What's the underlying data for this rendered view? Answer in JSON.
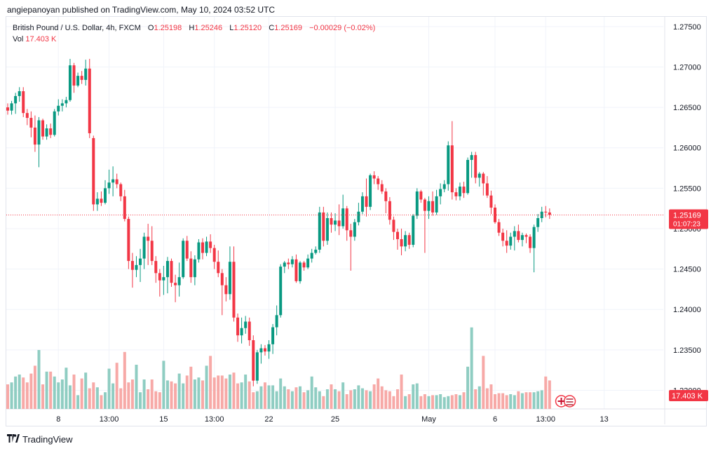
{
  "publish_line": "angiepanoyan published on TradingView.com, May 10, 2024 03:52 UTC",
  "footer_brand": "TradingView",
  "legend": {
    "symbol": "British Pound / U.S. Dollar, 4h, FXCM",
    "o_label": "O",
    "o_value": "1.25198",
    "h_label": "H",
    "h_value": "1.25246",
    "l_label": "L",
    "l_value": "1.25120",
    "c_label": "C",
    "c_value": "1.25169",
    "change": "−0.00029 (−0.02%)",
    "vol_label": "Vol",
    "vol_value": "17.403 K"
  },
  "colors": {
    "up": "#089981",
    "down": "#f23645",
    "up_vol": "#8fcdc2",
    "down_vol": "#f7a9a7",
    "grid": "#f0f3fa",
    "axis_text": "#131722"
  },
  "chart_data": {
    "type": "candlestick",
    "symbol": "GBPUSD",
    "timeframe": "4h",
    "y_ticks": [
      "1.27500",
      "1.27000",
      "1.26500",
      "1.26000",
      "1.25500",
      "1.25000",
      "1.24500",
      "1.24000",
      "1.23500",
      "1.23000"
    ],
    "ylim": [
      1.2277,
      1.2762
    ],
    "x_ticks": [
      {
        "label": "8",
        "bar": 13
      },
      {
        "label": "13:00",
        "bar": 26
      },
      {
        "label": "15",
        "bar": 40
      },
      {
        "label": "13:00",
        "bar": 53
      },
      {
        "label": "22",
        "bar": 67
      },
      {
        "label": "25",
        "bar": 84
      },
      {
        "label": "May",
        "bar": 108
      },
      {
        "label": "6",
        "bar": 125
      },
      {
        "label": "13:00",
        "bar": 138
      },
      {
        "label": "13",
        "bar": 153
      }
    ],
    "last_price": "1.25169",
    "countdown": "01:07:23",
    "volume_label": "17.403 K",
    "candles": [
      {
        "o": 1.265,
        "h": 1.2655,
        "l": 1.2641,
        "c": 1.2646
      },
      {
        "o": 1.2646,
        "h": 1.2658,
        "l": 1.2641,
        "c": 1.2655
      },
      {
        "o": 1.2655,
        "h": 1.2668,
        "l": 1.2642,
        "c": 1.2664
      },
      {
        "o": 1.2664,
        "h": 1.2675,
        "l": 1.2657,
        "c": 1.267
      },
      {
        "o": 1.267,
        "h": 1.2675,
        "l": 1.2638,
        "c": 1.2643
      },
      {
        "o": 1.2643,
        "h": 1.2648,
        "l": 1.2628,
        "c": 1.2637
      },
      {
        "o": 1.2637,
        "h": 1.2645,
        "l": 1.2613,
        "c": 1.2625
      },
      {
        "o": 1.2625,
        "h": 1.264,
        "l": 1.2595,
        "c": 1.2604
      },
      {
        "o": 1.2604,
        "h": 1.2638,
        "l": 1.2576,
        "c": 1.2634
      },
      {
        "o": 1.2634,
        "h": 1.2636,
        "l": 1.261,
        "c": 1.2614
      },
      {
        "o": 1.2614,
        "h": 1.2629,
        "l": 1.261,
        "c": 1.2624
      },
      {
        "o": 1.2624,
        "h": 1.263,
        "l": 1.2612,
        "c": 1.2616
      },
      {
        "o": 1.2616,
        "h": 1.2648,
        "l": 1.2614,
        "c": 1.2645
      },
      {
        "o": 1.2645,
        "h": 1.266,
        "l": 1.264,
        "c": 1.2652
      },
      {
        "o": 1.2652,
        "h": 1.266,
        "l": 1.2645,
        "c": 1.2655
      },
      {
        "o": 1.2655,
        "h": 1.2663,
        "l": 1.265,
        "c": 1.2659
      },
      {
        "o": 1.2659,
        "h": 1.271,
        "l": 1.2657,
        "c": 1.2702
      },
      {
        "o": 1.2702,
        "h": 1.2705,
        "l": 1.2668,
        "c": 1.2677
      },
      {
        "o": 1.2677,
        "h": 1.2693,
        "l": 1.2675,
        "c": 1.2689
      },
      {
        "o": 1.2689,
        "h": 1.2695,
        "l": 1.2679,
        "c": 1.2684
      },
      {
        "o": 1.2684,
        "h": 1.2709,
        "l": 1.2677,
        "c": 1.2698
      },
      {
        "o": 1.2698,
        "h": 1.271,
        "l": 1.2612,
        "c": 1.2618
      },
      {
        "o": 1.2612,
        "h": 1.2615,
        "l": 1.2522,
        "c": 1.253
      },
      {
        "o": 1.253,
        "h": 1.2545,
        "l": 1.2522,
        "c": 1.2537
      },
      {
        "o": 1.2537,
        "h": 1.2546,
        "l": 1.2528,
        "c": 1.2532
      },
      {
        "o": 1.2532,
        "h": 1.256,
        "l": 1.253,
        "c": 1.255
      },
      {
        "o": 1.255,
        "h": 1.2573,
        "l": 1.2543,
        "c": 1.2557
      },
      {
        "o": 1.2557,
        "h": 1.2577,
        "l": 1.254,
        "c": 1.2561
      },
      {
        "o": 1.2561,
        "h": 1.2568,
        "l": 1.255,
        "c": 1.2555
      },
      {
        "o": 1.2555,
        "h": 1.2557,
        "l": 1.2534,
        "c": 1.254
      },
      {
        "o": 1.254,
        "h": 1.2548,
        "l": 1.2509,
        "c": 1.2512
      },
      {
        "o": 1.2512,
        "h": 1.2515,
        "l": 1.245,
        "c": 1.246
      },
      {
        "o": 1.246,
        "h": 1.247,
        "l": 1.2427,
        "c": 1.2449
      },
      {
        "o": 1.2449,
        "h": 1.2466,
        "l": 1.244,
        "c": 1.2455
      },
      {
        "o": 1.2455,
        "h": 1.2475,
        "l": 1.2434,
        "c": 1.2463
      },
      {
        "o": 1.2463,
        "h": 1.2495,
        "l": 1.245,
        "c": 1.249
      },
      {
        "o": 1.249,
        "h": 1.2506,
        "l": 1.2455,
        "c": 1.2485
      },
      {
        "o": 1.2485,
        "h": 1.2503,
        "l": 1.2455,
        "c": 1.246
      },
      {
        "o": 1.246,
        "h": 1.2466,
        "l": 1.2433,
        "c": 1.2445
      },
      {
        "o": 1.2445,
        "h": 1.245,
        "l": 1.2416,
        "c": 1.2436
      },
      {
        "o": 1.2436,
        "h": 1.2454,
        "l": 1.2418,
        "c": 1.244
      },
      {
        "o": 1.244,
        "h": 1.2465,
        "l": 1.242,
        "c": 1.246
      },
      {
        "o": 1.246,
        "h": 1.2463,
        "l": 1.2428,
        "c": 1.2433
      },
      {
        "o": 1.2433,
        "h": 1.2443,
        "l": 1.2409,
        "c": 1.243
      },
      {
        "o": 1.243,
        "h": 1.2458,
        "l": 1.2416,
        "c": 1.244
      },
      {
        "o": 1.244,
        "h": 1.2488,
        "l": 1.2438,
        "c": 1.2485
      },
      {
        "o": 1.2485,
        "h": 1.2491,
        "l": 1.246,
        "c": 1.2463
      },
      {
        "o": 1.2463,
        "h": 1.2472,
        "l": 1.2433,
        "c": 1.244
      },
      {
        "o": 1.244,
        "h": 1.2467,
        "l": 1.243,
        "c": 1.2462
      },
      {
        "o": 1.2462,
        "h": 1.2487,
        "l": 1.2458,
        "c": 1.2483
      },
      {
        "o": 1.2483,
        "h": 1.2488,
        "l": 1.2462,
        "c": 1.247
      },
      {
        "o": 1.247,
        "h": 1.249,
        "l": 1.2466,
        "c": 1.2484
      },
      {
        "o": 1.2484,
        "h": 1.2493,
        "l": 1.247,
        "c": 1.2476
      },
      {
        "o": 1.2476,
        "h": 1.248,
        "l": 1.245,
        "c": 1.2459
      },
      {
        "o": 1.2459,
        "h": 1.2473,
        "l": 1.244,
        "c": 1.2445
      },
      {
        "o": 1.2445,
        "h": 1.245,
        "l": 1.2393,
        "c": 1.243
      },
      {
        "o": 1.243,
        "h": 1.244,
        "l": 1.241,
        "c": 1.2419
      },
      {
        "o": 1.2419,
        "h": 1.2478,
        "l": 1.2412,
        "c": 1.2459
      },
      {
        "o": 1.2459,
        "h": 1.2478,
        "l": 1.2385,
        "c": 1.239
      },
      {
        "o": 1.239,
        "h": 1.2395,
        "l": 1.236,
        "c": 1.2368
      },
      {
        "o": 1.2368,
        "h": 1.239,
        "l": 1.2358,
        "c": 1.2377
      },
      {
        "o": 1.2377,
        "h": 1.2392,
        "l": 1.237,
        "c": 1.2385
      },
      {
        "o": 1.2385,
        "h": 1.239,
        "l": 1.2355,
        "c": 1.2362
      },
      {
        "o": 1.2362,
        "h": 1.2368,
        "l": 1.2305,
        "c": 1.2312
      },
      {
        "o": 1.2312,
        "h": 1.235,
        "l": 1.2308,
        "c": 1.2347
      },
      {
        "o": 1.2347,
        "h": 1.2357,
        "l": 1.2333,
        "c": 1.2352
      },
      {
        "o": 1.2352,
        "h": 1.2356,
        "l": 1.2343,
        "c": 1.2348
      },
      {
        "o": 1.2348,
        "h": 1.2362,
        "l": 1.2339,
        "c": 1.2357
      },
      {
        "o": 1.2357,
        "h": 1.2382,
        "l": 1.2345,
        "c": 1.2378
      },
      {
        "o": 1.2378,
        "h": 1.2405,
        "l": 1.2368,
        "c": 1.2393
      },
      {
        "o": 1.2393,
        "h": 1.2456,
        "l": 1.239,
        "c": 1.2453
      },
      {
        "o": 1.2453,
        "h": 1.246,
        "l": 1.2445,
        "c": 1.2458
      },
      {
        "o": 1.2458,
        "h": 1.2463,
        "l": 1.245,
        "c": 1.2456
      },
      {
        "o": 1.2456,
        "h": 1.2466,
        "l": 1.2452,
        "c": 1.2462
      },
      {
        "o": 1.2462,
        "h": 1.2468,
        "l": 1.2433,
        "c": 1.2435
      },
      {
        "o": 1.2435,
        "h": 1.246,
        "l": 1.2432,
        "c": 1.2458
      },
      {
        "o": 1.2458,
        "h": 1.246,
        "l": 1.2448,
        "c": 1.2452
      },
      {
        "o": 1.2452,
        "h": 1.2468,
        "l": 1.245,
        "c": 1.2463
      },
      {
        "o": 1.2463,
        "h": 1.2475,
        "l": 1.2458,
        "c": 1.247
      },
      {
        "o": 1.247,
        "h": 1.2478,
        "l": 1.2468,
        "c": 1.2474
      },
      {
        "o": 1.2474,
        "h": 1.2527,
        "l": 1.247,
        "c": 1.252
      },
      {
        "o": 1.252,
        "h": 1.2527,
        "l": 1.2478,
        "c": 1.2485
      },
      {
        "o": 1.2485,
        "h": 1.252,
        "l": 1.248,
        "c": 1.2513
      },
      {
        "o": 1.2513,
        "h": 1.252,
        "l": 1.2495,
        "c": 1.2505
      },
      {
        "o": 1.2505,
        "h": 1.2519,
        "l": 1.2497,
        "c": 1.251
      },
      {
        "o": 1.251,
        "h": 1.253,
        "l": 1.2492,
        "c": 1.2503
      },
      {
        "o": 1.2503,
        "h": 1.2542,
        "l": 1.25,
        "c": 1.2525
      },
      {
        "o": 1.2525,
        "h": 1.2528,
        "l": 1.2485,
        "c": 1.2498
      },
      {
        "o": 1.2498,
        "h": 1.2506,
        "l": 1.2448,
        "c": 1.249
      },
      {
        "o": 1.249,
        "h": 1.2512,
        "l": 1.2485,
        "c": 1.2508
      },
      {
        "o": 1.2508,
        "h": 1.2532,
        "l": 1.2504,
        "c": 1.2521
      },
      {
        "o": 1.2521,
        "h": 1.2545,
        "l": 1.2518,
        "c": 1.254
      },
      {
        "o": 1.254,
        "h": 1.2562,
        "l": 1.2515,
        "c": 1.2527
      },
      {
        "o": 1.2527,
        "h": 1.2568,
        "l": 1.2523,
        "c": 1.2566
      },
      {
        "o": 1.2566,
        "h": 1.2571,
        "l": 1.2555,
        "c": 1.2562
      },
      {
        "o": 1.2562,
        "h": 1.2565,
        "l": 1.2548,
        "c": 1.2555
      },
      {
        "o": 1.2555,
        "h": 1.256,
        "l": 1.2543,
        "c": 1.2546
      },
      {
        "o": 1.2546,
        "h": 1.255,
        "l": 1.2519,
        "c": 1.2534
      },
      {
        "o": 1.2534,
        "h": 1.2539,
        "l": 1.2505,
        "c": 1.2511
      },
      {
        "o": 1.2511,
        "h": 1.2515,
        "l": 1.2486,
        "c": 1.2496
      },
      {
        "o": 1.2496,
        "h": 1.25,
        "l": 1.2474,
        "c": 1.2487
      },
      {
        "o": 1.2487,
        "h": 1.25,
        "l": 1.2467,
        "c": 1.2478
      },
      {
        "o": 1.2478,
        "h": 1.2497,
        "l": 1.2472,
        "c": 1.2492
      },
      {
        "o": 1.2492,
        "h": 1.2495,
        "l": 1.2475,
        "c": 1.248
      },
      {
        "o": 1.248,
        "h": 1.2518,
        "l": 1.2477,
        "c": 1.2516
      },
      {
        "o": 1.2516,
        "h": 1.255,
        "l": 1.2512,
        "c": 1.2546
      },
      {
        "o": 1.2546,
        "h": 1.2548,
        "l": 1.2532,
        "c": 1.2536
      },
      {
        "o": 1.2536,
        "h": 1.2538,
        "l": 1.247,
        "c": 1.2522
      },
      {
        "o": 1.2522,
        "h": 1.254,
        "l": 1.2512,
        "c": 1.2534
      },
      {
        "o": 1.2534,
        "h": 1.2546,
        "l": 1.2516,
        "c": 1.252
      },
      {
        "o": 1.252,
        "h": 1.2548,
        "l": 1.2517,
        "c": 1.254
      },
      {
        "o": 1.254,
        "h": 1.2556,
        "l": 1.253,
        "c": 1.2549
      },
      {
        "o": 1.2549,
        "h": 1.256,
        "l": 1.2545,
        "c": 1.2555
      },
      {
        "o": 1.2555,
        "h": 1.2608,
        "l": 1.2547,
        "c": 1.2603
      },
      {
        "o": 1.2603,
        "h": 1.2633,
        "l": 1.2536,
        "c": 1.2545
      },
      {
        "o": 1.2545,
        "h": 1.255,
        "l": 1.2535,
        "c": 1.254
      },
      {
        "o": 1.254,
        "h": 1.2557,
        "l": 1.2535,
        "c": 1.2552
      },
      {
        "o": 1.2552,
        "h": 1.2558,
        "l": 1.2538,
        "c": 1.2544
      },
      {
        "o": 1.2544,
        "h": 1.2588,
        "l": 1.2542,
        "c": 1.2585
      },
      {
        "o": 1.2585,
        "h": 1.2595,
        "l": 1.2563,
        "c": 1.2591
      },
      {
        "o": 1.2591,
        "h": 1.2595,
        "l": 1.2556,
        "c": 1.2563
      },
      {
        "o": 1.2563,
        "h": 1.257,
        "l": 1.2552,
        "c": 1.2568
      },
      {
        "o": 1.2568,
        "h": 1.257,
        "l": 1.2541,
        "c": 1.2556
      },
      {
        "o": 1.2556,
        "h": 1.2565,
        "l": 1.2538,
        "c": 1.2541
      },
      {
        "o": 1.2541,
        "h": 1.2547,
        "l": 1.2518,
        "c": 1.2526
      },
      {
        "o": 1.2526,
        "h": 1.253,
        "l": 1.2506,
        "c": 1.2508
      },
      {
        "o": 1.2508,
        "h": 1.2512,
        "l": 1.2491,
        "c": 1.2495
      },
      {
        "o": 1.2495,
        "h": 1.25,
        "l": 1.2478,
        "c": 1.2485
      },
      {
        "o": 1.2485,
        "h": 1.2498,
        "l": 1.247,
        "c": 1.2479
      },
      {
        "o": 1.2479,
        "h": 1.2495,
        "l": 1.2474,
        "c": 1.249
      },
      {
        "o": 1.249,
        "h": 1.2503,
        "l": 1.2473,
        "c": 1.2497
      },
      {
        "o": 1.2497,
        "h": 1.2505,
        "l": 1.2483,
        "c": 1.2486
      },
      {
        "o": 1.2486,
        "h": 1.2495,
        "l": 1.2478,
        "c": 1.2492
      },
      {
        "o": 1.2492,
        "h": 1.2494,
        "l": 1.2482,
        "c": 1.249
      },
      {
        "o": 1.249,
        "h": 1.2493,
        "l": 1.247,
        "c": 1.2476
      },
      {
        "o": 1.2476,
        "h": 1.2505,
        "l": 1.2446,
        "c": 1.2502
      },
      {
        "o": 1.2502,
        "h": 1.2518,
        "l": 1.2496,
        "c": 1.2513
      },
      {
        "o": 1.2513,
        "h": 1.2527,
        "l": 1.2508,
        "c": 1.2521
      },
      {
        "o": 1.2521,
        "h": 1.2528,
        "l": 1.2514,
        "c": 1.252
      },
      {
        "o": 1.252,
        "h": 1.2525,
        "l": 1.2512,
        "c": 1.2517
      }
    ],
    "volumes": [
      0.25,
      0.27,
      0.33,
      0.35,
      0.32,
      0.27,
      0.36,
      0.44,
      0.6,
      0.25,
      0.38,
      0.38,
      0.33,
      0.27,
      0.3,
      0.42,
      0.24,
      0.35,
      0.14,
      0.31,
      0.37,
      0.21,
      0.27,
      0.22,
      0.14,
      0.17,
      0.41,
      0.26,
      0.47,
      0.21,
      0.58,
      0.27,
      0.3,
      0.45,
      0.17,
      0.3,
      0.2,
      0.3,
      0.18,
      0.17,
      0.49,
      0.29,
      0.28,
      0.26,
      0.36,
      0.26,
      0.34,
      0.43,
      0.3,
      0.32,
      0.29,
      0.44,
      0.54,
      0.32,
      0.34,
      0.34,
      0.31,
      0.35,
      0.37,
      0.26,
      0.27,
      0.35,
      0.28,
      0.17,
      0.18,
      0.23,
      0.27,
      0.24,
      0.24,
      0.18,
      0.31,
      0.23,
      0.2,
      0.18,
      0.22,
      0.23,
      0.17,
      0.19,
      0.33,
      0.22,
      0.18,
      0.13,
      0.2,
      0.25,
      0.2,
      0.18,
      0.27,
      0.15,
      0.19,
      0.2,
      0.24,
      0.21,
      0.19,
      0.18,
      0.25,
      0.31,
      0.23,
      0.19,
      0.18,
      0.13,
      0.2,
      0.35,
      0.13,
      0.15,
      0.25,
      0.26,
      0.13,
      0.15,
      0.13,
      0.14,
      0.14,
      0.15,
      0.12,
      0.13,
      0.14,
      0.15,
      0.14,
      0.17,
      0.43,
      0.83,
      0.2,
      0.23,
      0.54,
      0.21,
      0.25,
      0.15,
      0.16,
      0.16,
      0.14,
      0.15,
      0.14,
      0.18,
      0.16,
      0.17,
      0.17,
      0.17,
      0.18,
      0.19,
      0.33,
      0.29,
      0.2,
      0.23,
      0.22,
      0.2,
      0.18
    ]
  }
}
